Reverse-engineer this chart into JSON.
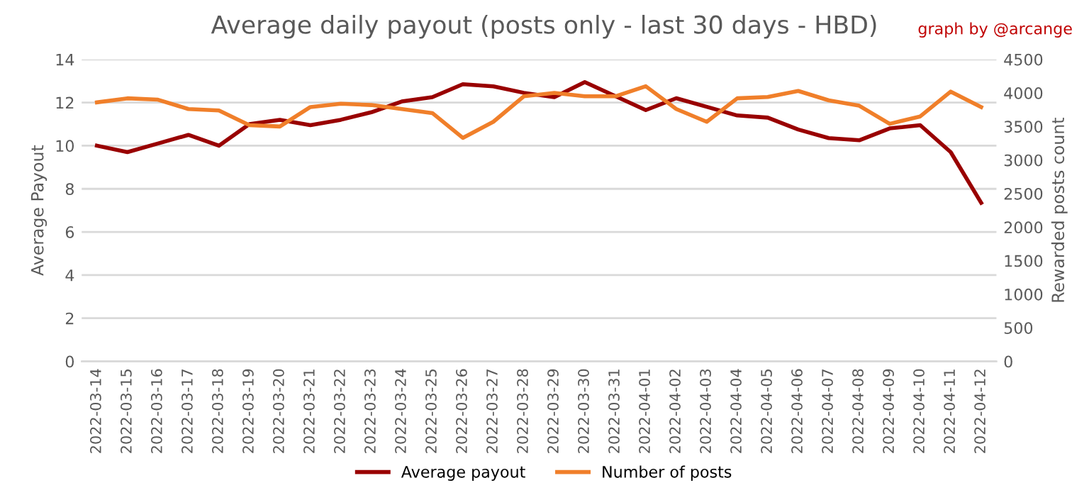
{
  "chart_data": {
    "type": "line",
    "title": "Average daily payout (posts only - last 30 days - HBD)",
    "annotations": [
      "graph by @arcange"
    ],
    "ylabel": "Average Payout",
    "y2label": "Rewarded posts count",
    "categories": [
      "2022-03-14",
      "2022-03-15",
      "2022-03-16",
      "2022-03-17",
      "2022-03-18",
      "2022-03-19",
      "2022-03-20",
      "2022-03-21",
      "2022-03-22",
      "2022-03-23",
      "2022-03-24",
      "2022-03-25",
      "2022-03-26",
      "2022-03-27",
      "2022-03-28",
      "2022-03-29",
      "2022-03-30",
      "2022-03-31",
      "2022-04-01",
      "2022-04-02",
      "2022-04-03",
      "2022-04-04",
      "2022-04-05",
      "2022-04-06",
      "2022-04-07",
      "2022-04-08",
      "2022-04-09",
      "2022-04-10",
      "2022-04-11",
      "2022-04-12"
    ],
    "series": [
      {
        "name": "Average payout",
        "color": "#990000",
        "values": [
          10.0,
          9.7,
          10.1,
          10.5,
          10.0,
          11.0,
          11.2,
          10.95,
          11.2,
          11.55,
          12.05,
          12.25,
          12.85,
          12.75,
          12.45,
          12.25,
          12.95,
          12.3,
          11.65,
          12.2,
          11.8,
          11.4,
          11.3,
          10.75,
          10.35,
          10.25,
          10.8,
          10.95,
          9.7,
          7.35
        ]
      },
      {
        "name": "Number of posts",
        "color": "#f07f2a",
        "axis": "y2",
        "values": [
          3860,
          3920,
          3900,
          3760,
          3740,
          3520,
          3500,
          3790,
          3840,
          3820,
          3760,
          3700,
          3330,
          3570,
          3950,
          4000,
          3950,
          3950,
          4100,
          3760,
          3570,
          3920,
          3940,
          4030,
          3890,
          3810,
          3540,
          3650,
          4020,
          3790
        ]
      }
    ],
    "ylim": [
      0,
      14
    ],
    "yticks": [
      0,
      2,
      4,
      6,
      8,
      10,
      12,
      14
    ],
    "y2lim": [
      0,
      4500
    ],
    "y2ticks": [
      0,
      500,
      1000,
      1500,
      2000,
      2500,
      3000,
      3500,
      4000,
      4500
    ],
    "grid": "y",
    "legend": "bottom",
    "marker": "none",
    "line_style": "solid"
  }
}
